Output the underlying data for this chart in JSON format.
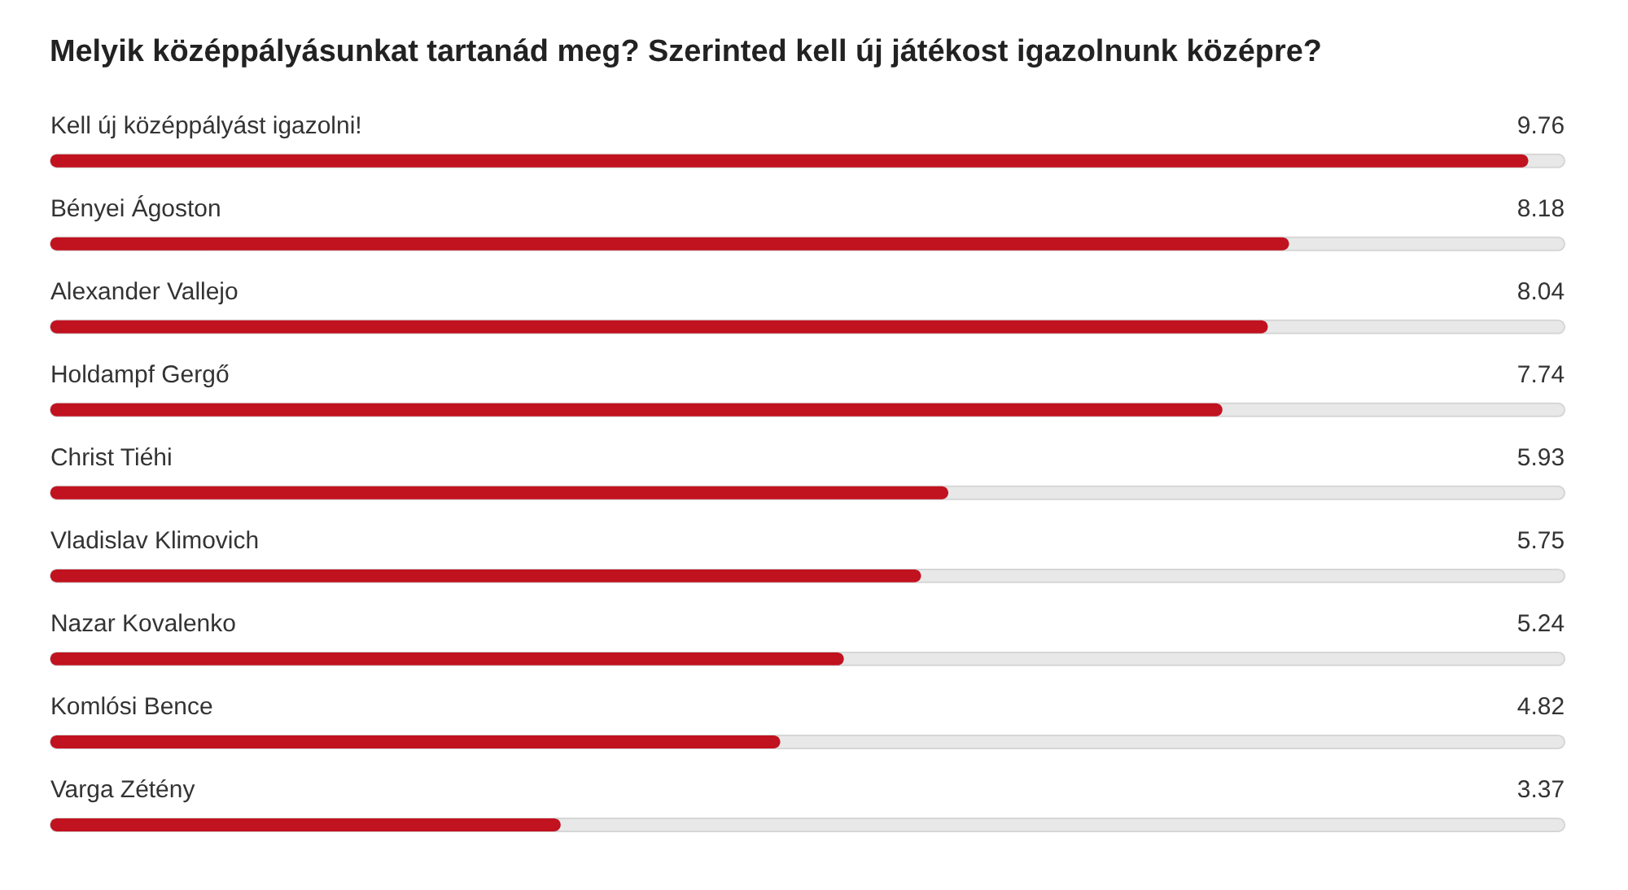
{
  "chart_data": {
    "type": "bar",
    "orientation": "horizontal",
    "title": "Melyik középpályásunkat tartanád meg? Szerinted kell új játékost igazolnunk középre?",
    "categories": [
      "Kell új középpályást igazolni!",
      "Bényei Ágoston",
      "Alexander Vallejo",
      "Holdampf Gergő",
      "Christ Tiéhi",
      "Vladislav Klimovich",
      "Nazar Kovalenko",
      "Komlósi Bence",
      "Varga Zétény"
    ],
    "values": [
      9.76,
      8.18,
      8.04,
      7.74,
      5.93,
      5.75,
      5.24,
      4.82,
      3.37
    ],
    "color": "#c1121f",
    "xlim": [
      0,
      10
    ],
    "data_labels": true
  }
}
